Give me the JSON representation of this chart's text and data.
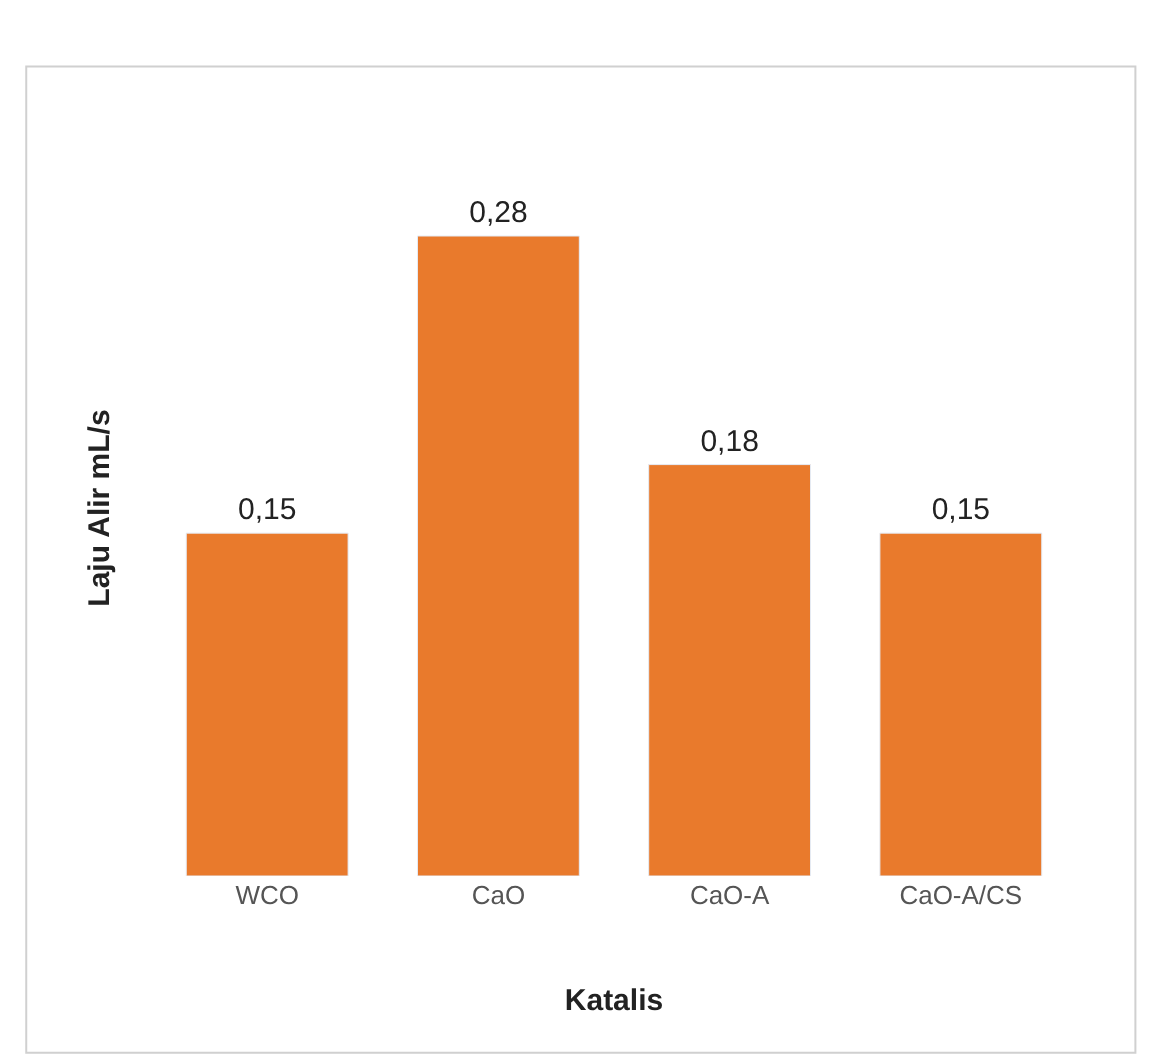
{
  "chart_data": {
    "type": "bar",
    "xlabel": "Katalis",
    "ylabel": "Laju Alir mL/s",
    "categories": [
      "WCO",
      "CaO",
      "CaO-A",
      "CaO-A/CS"
    ],
    "values": [
      0.15,
      0.28,
      0.18,
      0.15
    ],
    "value_labels": [
      "0,15",
      "0,28",
      "0,18",
      "0,15"
    ],
    "color": "#e97a2c"
  }
}
